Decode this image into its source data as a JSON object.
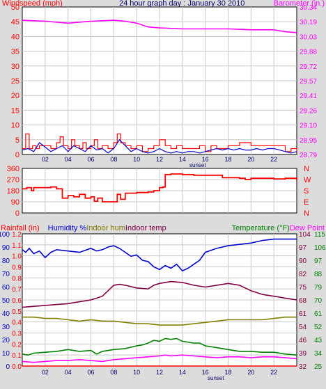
{
  "chart_data": [
    {
      "type": "line",
      "title": "24 hour graph day : January 30 2010",
      "y_left_label": "Windspeed (mph)",
      "y_right_label": "Barometer (in.)",
      "x_ticks": [
        "02",
        "04",
        "06",
        "08",
        "10",
        "12",
        "14",
        "16",
        "18",
        "20",
        "22"
      ],
      "x_marker": "sunset",
      "y_left_ticks": [
        0,
        5,
        10,
        15,
        20,
        25,
        30,
        35,
        40,
        45,
        50
      ],
      "y_right_ticks": [
        "28.79",
        "28.95",
        "29.10",
        "29.26",
        "29.41",
        "29.57",
        "29.72",
        "29.88",
        "30.03",
        "30.19",
        "30.34"
      ],
      "ylim_left": [
        0,
        50
      ],
      "ylim_right": [
        28.79,
        30.34
      ],
      "xlim": [
        0,
        24
      ],
      "colors": {
        "barometer": "#ff00ff",
        "gust": "#ff0000",
        "wind": "#0000cc"
      },
      "series": [
        {
          "axis": "right",
          "x": [
            0,
            2,
            4,
            6,
            8,
            9,
            10,
            11,
            12,
            14,
            16,
            18,
            20,
            22,
            23,
            24
          ],
          "values": [
            30.2,
            30.19,
            30.17,
            30.19,
            30.2,
            30.19,
            30.17,
            30.13,
            30.12,
            30.11,
            30.11,
            30.11,
            30.1,
            30.1,
            30.08,
            30.07
          ]
        },
        {
          "axis": "left",
          "x": [
            0,
            0.3,
            0.6,
            0.9,
            1.2,
            1.5,
            2,
            2.5,
            3,
            3.3,
            3.6,
            4,
            4.3,
            4.6,
            5,
            5.3,
            5.6,
            6,
            6.3,
            6.6,
            7,
            7.5,
            8,
            8.3,
            8.6,
            9,
            9.5,
            10,
            10.5,
            11,
            11.5,
            12,
            12.5,
            13,
            13.5,
            14,
            15,
            15.5,
            16,
            16.5,
            17,
            18,
            19,
            20,
            21,
            22,
            22.5,
            23,
            23.5,
            24
          ],
          "values": [
            2,
            7,
            2,
            3,
            2,
            3,
            3,
            2,
            4,
            6,
            3,
            2,
            5,
            3,
            2,
            4,
            2,
            3,
            5,
            2,
            3,
            2,
            4,
            7,
            4,
            3,
            2,
            3,
            1,
            2,
            3,
            5,
            3,
            2,
            3,
            2,
            2,
            3,
            1,
            3,
            2,
            3,
            4,
            3,
            3,
            3,
            3,
            1,
            2,
            1
          ]
        },
        {
          "axis": "left",
          "x": [
            0,
            0.5,
            1,
            1.5,
            2,
            2.5,
            3,
            3.5,
            4,
            4.5,
            5,
            5.5,
            6,
            6.5,
            7,
            7.5,
            8,
            8.5,
            9,
            9.5,
            10,
            10.5,
            11,
            11.5,
            12,
            12.5,
            13,
            13.5,
            14,
            14.5,
            15,
            15.5,
            16,
            16.5,
            17,
            17.5,
            18,
            18.5,
            19,
            19.5,
            20,
            20.5,
            21,
            21.5,
            22,
            22.5,
            23,
            23.5,
            24
          ],
          "values": [
            1.5,
            2,
            1,
            4,
            2.5,
            1,
            2,
            3,
            1,
            3,
            2,
            1,
            3,
            1.5,
            2,
            0.5,
            2,
            5,
            3,
            1,
            2,
            1,
            0.5,
            1,
            2,
            1,
            0.5,
            1,
            0.5,
            1,
            1,
            0.5,
            1,
            1.5,
            2,
            1.5,
            2,
            1.5,
            2,
            1.5,
            1.5,
            2,
            1.5,
            2,
            2,
            1.5,
            1,
            0.5,
            1
          ]
        }
      ]
    },
    {
      "type": "line",
      "y_left_ticks": [
        0,
        90,
        180,
        270,
        360
      ],
      "y_right_ticks": [
        "N",
        "E",
        "S",
        "W",
        "N"
      ],
      "ylim": [
        0,
        360
      ],
      "xlim": [
        0,
        24
      ],
      "colors": {
        "direction": "#ff0000"
      },
      "series": [
        {
          "axis": "left",
          "x": [
            0,
            0.4,
            0.8,
            1,
            2,
            2.5,
            3,
            3.5,
            4,
            4.5,
            5,
            5.5,
            6,
            6.3,
            6.6,
            7,
            7.5,
            8,
            8.3,
            8.6,
            9,
            10,
            11,
            11.5,
            12,
            12.3,
            12.5,
            13,
            14,
            15,
            15.5,
            16,
            17,
            17.5,
            18,
            19,
            19.5,
            20,
            21,
            22,
            23,
            24
          ],
          "values": [
            195,
            205,
            180,
            205,
            205,
            210,
            195,
            120,
            140,
            130,
            150,
            120,
            130,
            95,
            120,
            90,
            90,
            90,
            150,
            110,
            160,
            165,
            170,
            180,
            205,
            210,
            310,
            315,
            310,
            305,
            305,
            305,
            305,
            285,
            285,
            280,
            270,
            280,
            280,
            275,
            280,
            265
          ]
        }
      ]
    },
    {
      "type": "line",
      "y_left_labels": [
        "Rainfall (in)",
        "Humidity %",
        "Indoor hum",
        "Indoor temp"
      ],
      "y_right_labels": [
        "Temperature (°F)",
        "Dew Point"
      ],
      "x_ticks": [
        "02",
        "04",
        "06",
        "08",
        "10",
        "12",
        "14",
        "16",
        "18",
        "20",
        "22"
      ],
      "x_marker": "sunset",
      "rain_ticks": [
        "0.0",
        "0.1",
        "0.2",
        "0.3",
        "0.4",
        "0.5",
        "0.6",
        "0.7",
        "0.8",
        "0.9",
        "1.0",
        "1.1",
        "1.2"
      ],
      "hum_ticks": [
        0,
        10,
        20,
        30,
        40,
        50,
        60,
        70,
        80,
        90,
        100
      ],
      "temp_ticks_a": [
        32,
        39,
        46,
        54,
        61,
        68,
        75,
        82,
        90,
        97,
        104
      ],
      "temp_ticks_b": [
        25,
        34,
        43,
        52,
        61,
        70,
        79,
        88,
        97,
        106,
        115
      ],
      "ylim_rain": [
        0,
        1.2
      ],
      "ylim_hum": [
        0,
        100
      ],
      "ylim_temp_a": [
        32,
        104
      ],
      "xlim": [
        0,
        24
      ],
      "colors": {
        "humidity": "#0000cc",
        "indoor_hum": "#808000",
        "indoor_temp": "#800040",
        "temperature": "#008000",
        "dew_point": "#ff00ff",
        "rain": "#ff0000"
      },
      "series": [
        {
          "name": "Humidity %",
          "axis": "hum",
          "x": [
            0,
            0.3,
            0.6,
            1,
            1.5,
            2,
            2.5,
            3,
            4,
            5,
            6,
            6.5,
            7,
            7.5,
            8,
            8.5,
            9,
            9.5,
            10,
            10.5,
            11,
            11.5,
            12,
            12.5,
            13,
            13.5,
            14,
            14.5,
            15,
            15.5,
            16,
            17,
            18,
            19,
            20,
            21,
            22,
            23,
            24
          ],
          "values": [
            88,
            86,
            89,
            85,
            87,
            82,
            86,
            88,
            87,
            86,
            89,
            87,
            88,
            90,
            91,
            89,
            86,
            83,
            84,
            80,
            79,
            75,
            73,
            76,
            74,
            77,
            72,
            74,
            77,
            80,
            86,
            89,
            91,
            92,
            93,
            95,
            96,
            96,
            96
          ]
        },
        {
          "name": "Indoor hum",
          "axis": "hum",
          "x": [
            0,
            1,
            2,
            3,
            4,
            5,
            6,
            7,
            8,
            9,
            10,
            11,
            12,
            13,
            14,
            15,
            16,
            17,
            18,
            19,
            20,
            21,
            22,
            23,
            24
          ],
          "values": [
            37,
            37,
            36,
            36,
            35,
            34,
            35,
            34,
            34,
            33,
            32,
            32,
            31,
            31,
            31,
            32,
            33,
            34,
            35,
            35,
            35,
            35,
            36,
            37,
            37
          ]
        },
        {
          "name": "Indoor temp",
          "axis": "temp_a",
          "x": [
            0,
            1,
            2,
            3,
            4,
            5,
            6,
            7,
            7.5,
            8,
            8.5,
            9,
            10,
            11,
            11.5,
            12,
            13,
            14,
            15,
            16,
            17,
            18,
            19,
            20,
            21,
            22,
            23,
            24
          ],
          "values": [
            64,
            64.5,
            65,
            65.5,
            66,
            67,
            68,
            70,
            73,
            76,
            76.5,
            76,
            74.5,
            74,
            76,
            77,
            78,
            77.5,
            76,
            75,
            76,
            77,
            76,
            73,
            71,
            70,
            69,
            68
          ]
        },
        {
          "name": "Temperature (°F)",
          "axis": "temp_a",
          "x": [
            0,
            0.5,
            1,
            2,
            3,
            4,
            5,
            6,
            6.5,
            7,
            8,
            9,
            10,
            10.5,
            11,
            11.5,
            12,
            12.5,
            13,
            13.5,
            14,
            15,
            15.5,
            16,
            17,
            18,
            19,
            20,
            21,
            22,
            23,
            24
          ],
          "values": [
            38.5,
            38,
            39,
            39.5,
            40,
            41,
            40,
            40.5,
            38.5,
            40,
            41,
            41.5,
            43,
            43.5,
            44.5,
            46,
            45.5,
            47,
            46.5,
            47,
            45.5,
            44.5,
            44.5,
            43,
            42,
            41,
            40,
            40,
            39.5,
            39.5,
            38.5,
            38
          ]
        },
        {
          "name": "Dew Point",
          "axis": "temp_a",
          "x": [
            0,
            1,
            2,
            3,
            4,
            5,
            6,
            7,
            8,
            9,
            10,
            11,
            12,
            12.5,
            13,
            14,
            15,
            16,
            17,
            18,
            19,
            20,
            21,
            22,
            23,
            24
          ],
          "values": [
            34.5,
            34,
            34.5,
            35,
            35,
            35.5,
            35,
            34.5,
            35.5,
            36,
            36.5,
            37,
            37.5,
            38,
            37.5,
            38,
            37.5,
            37,
            36.5,
            37,
            37,
            36.5,
            37,
            37,
            36.5,
            36
          ]
        },
        {
          "name": "Rainfall (in)",
          "axis": "rain",
          "x": [
            0,
            24
          ],
          "values": [
            0,
            0
          ]
        }
      ]
    }
  ]
}
